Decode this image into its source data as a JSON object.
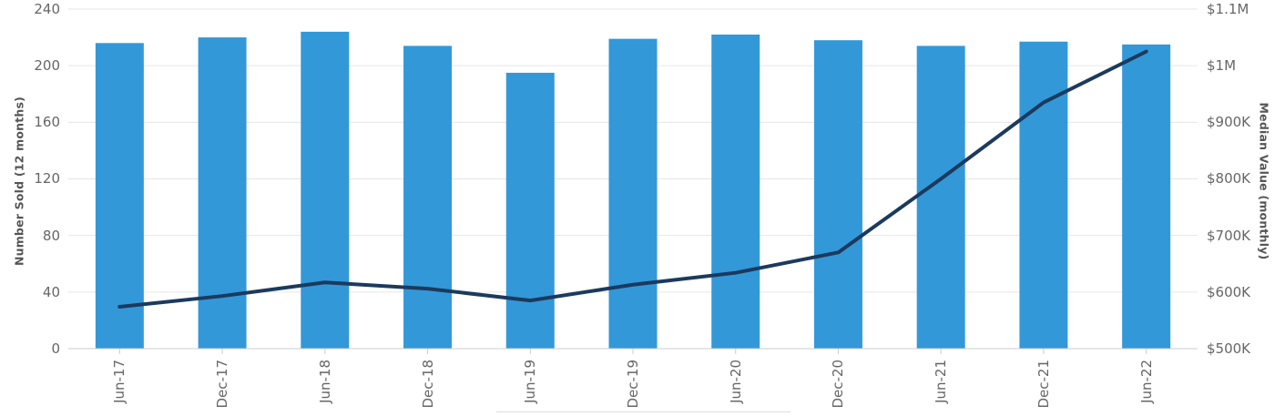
{
  "chart_data": {
    "type": "combo",
    "title": "",
    "categories": [
      "Jun-17",
      "Dec-17",
      "Jun-18",
      "Dec-18",
      "Jun-19",
      "Dec-19",
      "Jun-20",
      "Dec-20",
      "Jun-21",
      "Dec-21",
      "Jun-22"
    ],
    "series": [
      {
        "name": "Number Sold (12 months)",
        "type": "bar",
        "y_axis": "left",
        "color": "#3398d8",
        "values": [
          216,
          220,
          224,
          214,
          195,
          219,
          222,
          218,
          214,
          217,
          215
        ]
      },
      {
        "name": "Median Value (monthly)",
        "type": "line",
        "y_axis": "right",
        "color": "#1b3a5e",
        "unit": "USD thousands",
        "values_k": [
          574,
          593,
          617,
          606,
          585,
          613,
          634,
          670,
          800,
          935,
          1025
        ]
      }
    ],
    "left_axis": {
      "title": "Number Sold (12 months)",
      "min": 0,
      "max": 240,
      "tick_step": 40,
      "ticks": [
        "0",
        "40",
        "80",
        "120",
        "160",
        "200",
        "240"
      ]
    },
    "right_axis": {
      "title": "Median Value (monthly)",
      "min_k": 500,
      "max_k": 1100,
      "ticks": [
        "$500K",
        "$600K",
        "$700K",
        "$800K",
        "$900K",
        "$1M",
        "$1.1M"
      ]
    },
    "grid": "horizontal",
    "legend_position": "none"
  },
  "colors": {
    "bar": "#3398d8",
    "line": "#1b3a5e",
    "grid": "#e6e6e6",
    "axis_line": "#cccccc",
    "tick_text": "#666666",
    "axis_title_text": "#555555"
  }
}
